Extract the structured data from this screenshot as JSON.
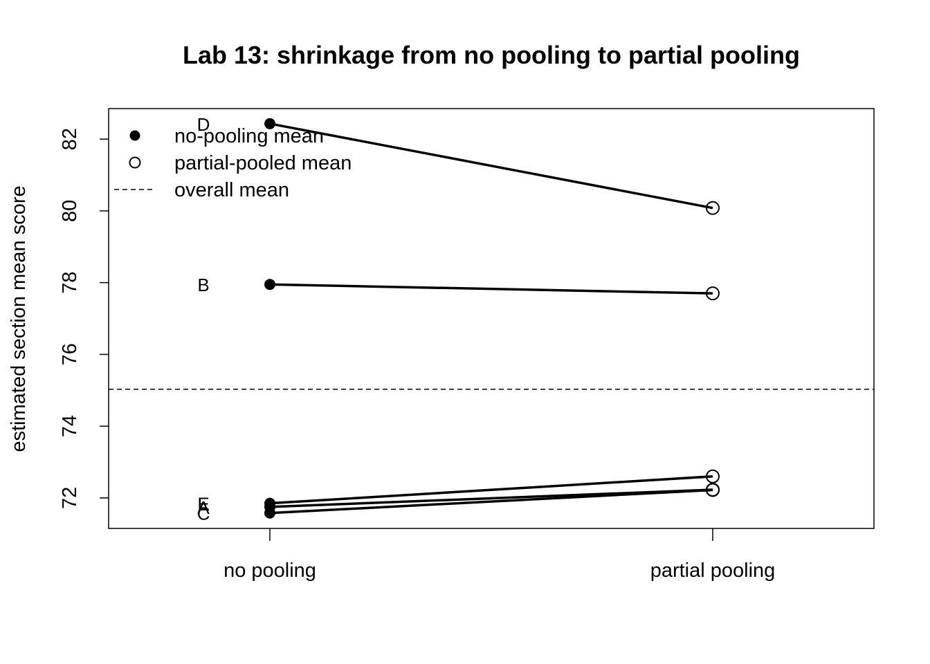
{
  "chart_data": {
    "type": "line",
    "title": "Lab 13: shrinkage from no pooling to partial pooling",
    "xlabel": "",
    "ylabel": "estimated section mean score",
    "categories": [
      "no pooling",
      "partial pooling"
    ],
    "ylim": [
      71.15,
      82.85
    ],
    "yticks": [
      72,
      74,
      76,
      78,
      80,
      82
    ],
    "series": [
      {
        "name": "D",
        "values": [
          82.43,
          80.08
        ]
      },
      {
        "name": "B",
        "values": [
          77.95,
          77.7
        ]
      },
      {
        "name": "E",
        "values": [
          71.85,
          72.6
        ]
      },
      {
        "name": "A",
        "values": [
          71.75,
          72.23
        ]
      },
      {
        "name": "C",
        "values": [
          71.58,
          72.22
        ]
      }
    ],
    "overall_mean": 75.03,
    "legend": {
      "placement": "top-left",
      "entries": [
        {
          "label": "no-pooling mean",
          "symbol": "filled-circle"
        },
        {
          "label": "partial-pooled mean",
          "symbol": "open-circle"
        },
        {
          "label": "overall mean",
          "symbol": "dashed-line"
        }
      ]
    },
    "grid": false,
    "colors": {
      "line": "#000000",
      "background": "#ffffff"
    }
  }
}
